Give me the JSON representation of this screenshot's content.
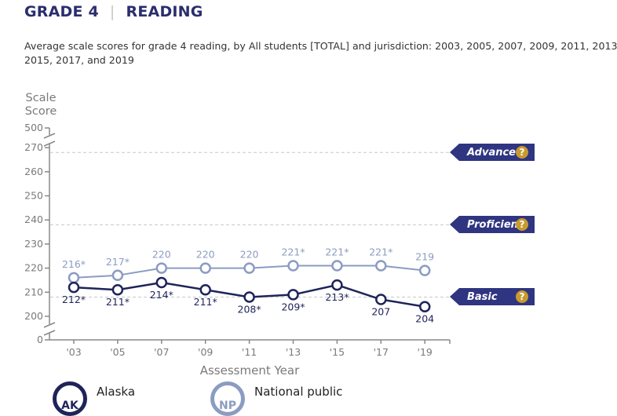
{
  "header": {
    "grade": "GRADE 4",
    "separator": "|",
    "subject": "READING"
  },
  "subtitle": "Average scale scores for grade 4 reading, by All students [TOTAL] and jurisdiction: 2003, 2005, 2007, 2009, 2011, 2013, 2015, 2017, and 2019",
  "achievement_levels": [
    {
      "label": "Advanced",
      "cutoff": 268,
      "help_icon": "question-icon",
      "help_glyph": "?"
    },
    {
      "label": "Proficient",
      "cutoff": 238,
      "help_icon": "question-icon",
      "help_glyph": "?"
    },
    {
      "label": "Basic",
      "cutoff": 208,
      "help_icon": "question-icon",
      "help_glyph": "?"
    }
  ],
  "legend": [
    {
      "abbr": "AK",
      "name": "Alaska",
      "color": "#1e2459"
    },
    {
      "abbr": "NP",
      "name": "National public",
      "color": "#8b9cc2"
    }
  ],
  "chart_data": {
    "type": "line",
    "title": "Average scale scores for grade 4 reading",
    "xlabel": "Assessment Year",
    "ylabel": "Scale Score",
    "categories": [
      "'03",
      "'05",
      "'07",
      "'09",
      "'11",
      "'13",
      "'15",
      "'17",
      "'19"
    ],
    "yticks": [
      0,
      200,
      210,
      220,
      230,
      240,
      250,
      260,
      270,
      500
    ],
    "ylim": [
      200,
      270
    ],
    "axis_breaks": [
      "0-200",
      "270-500"
    ],
    "series": [
      {
        "name": "National public",
        "values": [
          216,
          217,
          220,
          220,
          220,
          221,
          221,
          221,
          219
        ],
        "labels": [
          "216*",
          "217*",
          "220",
          "220",
          "220",
          "221*",
          "221*",
          "221*",
          "219"
        ],
        "color": "#8b9cc2"
      },
      {
        "name": "Alaska",
        "values": [
          212,
          211,
          214,
          211,
          208,
          209,
          213,
          207,
          204
        ],
        "labels": [
          "212*",
          "211*",
          "214*",
          "211*",
          "208*",
          "209*",
          "213*",
          "207",
          "204"
        ],
        "color": "#1e2459"
      }
    ],
    "reference_lines": [
      {
        "label": "Advanced",
        "value": 268
      },
      {
        "label": "Proficient",
        "value": 238
      },
      {
        "label": "Basic",
        "value": 208
      }
    ],
    "grid": false,
    "legend_position": "bottom-left"
  }
}
